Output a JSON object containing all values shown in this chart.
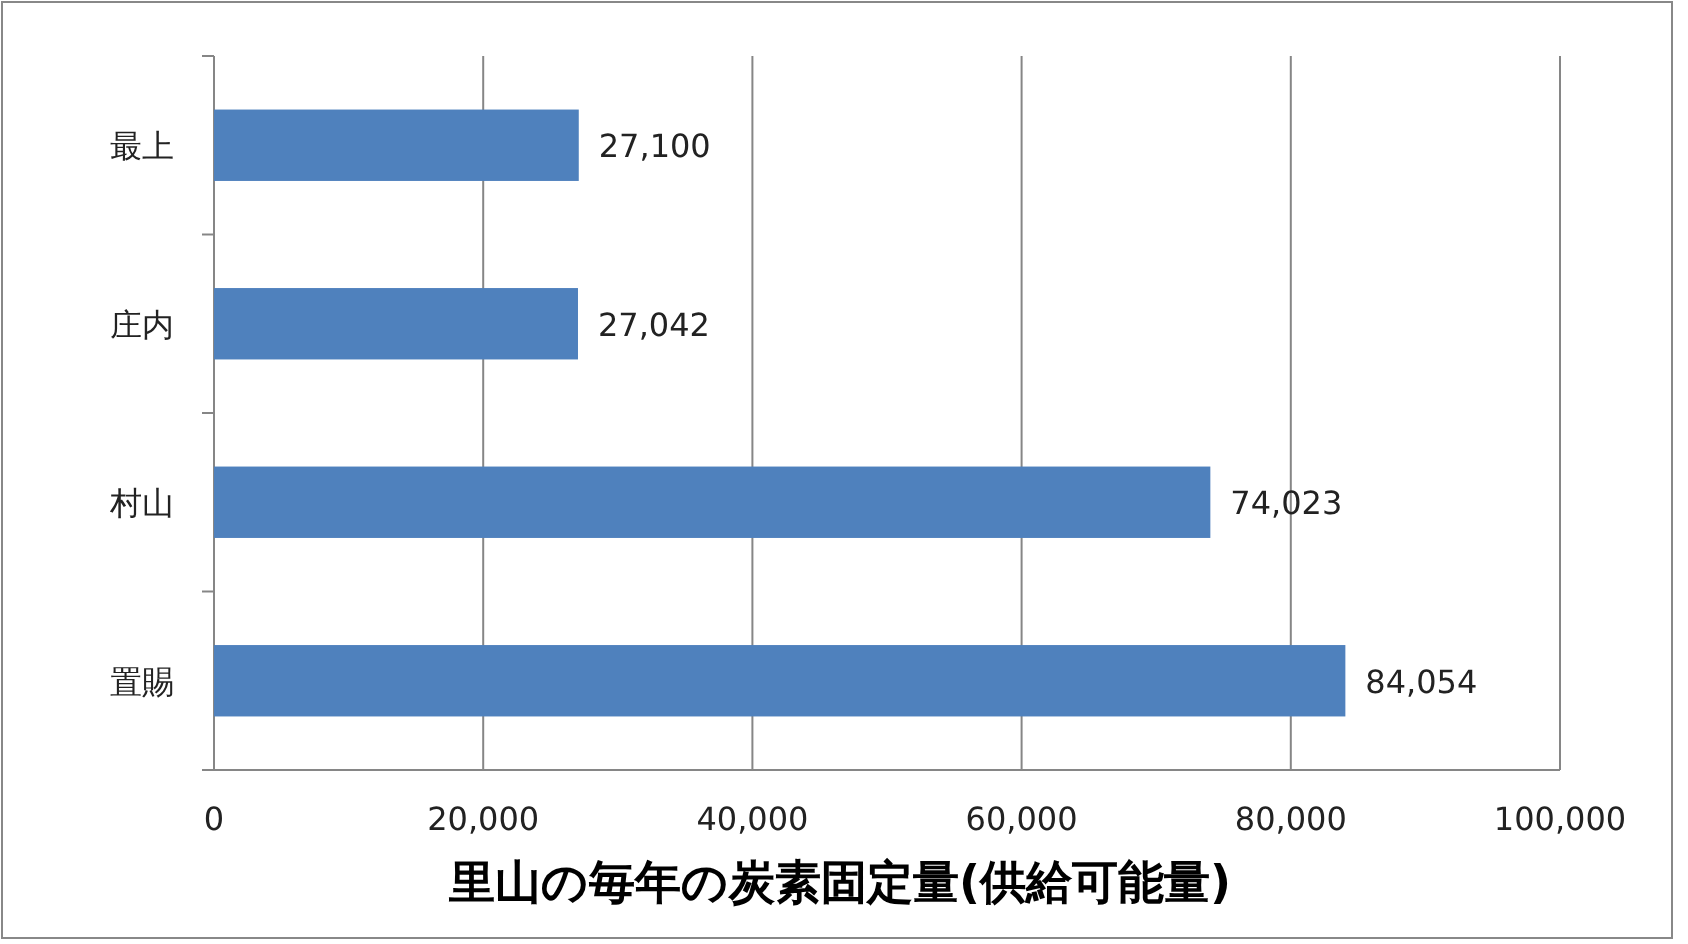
{
  "chart_data": {
    "type": "bar",
    "orientation": "horizontal",
    "xlabel": "里山の毎年の炭素固定量(供給可能量)",
    "categories": [
      "最上",
      "庄内",
      "村山",
      "置賜"
    ],
    "values": [
      27100,
      27042,
      74023,
      84054
    ],
    "value_labels": [
      "27,100",
      "27,042",
      "74,023",
      "84,054"
    ],
    "color": "#4f81bd",
    "grid": "x",
    "xlim": [
      0,
      100000
    ],
    "xticks": [
      0,
      {
        "value": 20000,
        "label": "20,000"
      },
      {
        "value": 40000,
        "label": "40,000"
      },
      {
        "value": 60000,
        "label": "60,000"
      },
      {
        "value": 80000,
        "label": "80,000"
      },
      {
        "value": 100000,
        "label": "100,000"
      }
    ]
  }
}
